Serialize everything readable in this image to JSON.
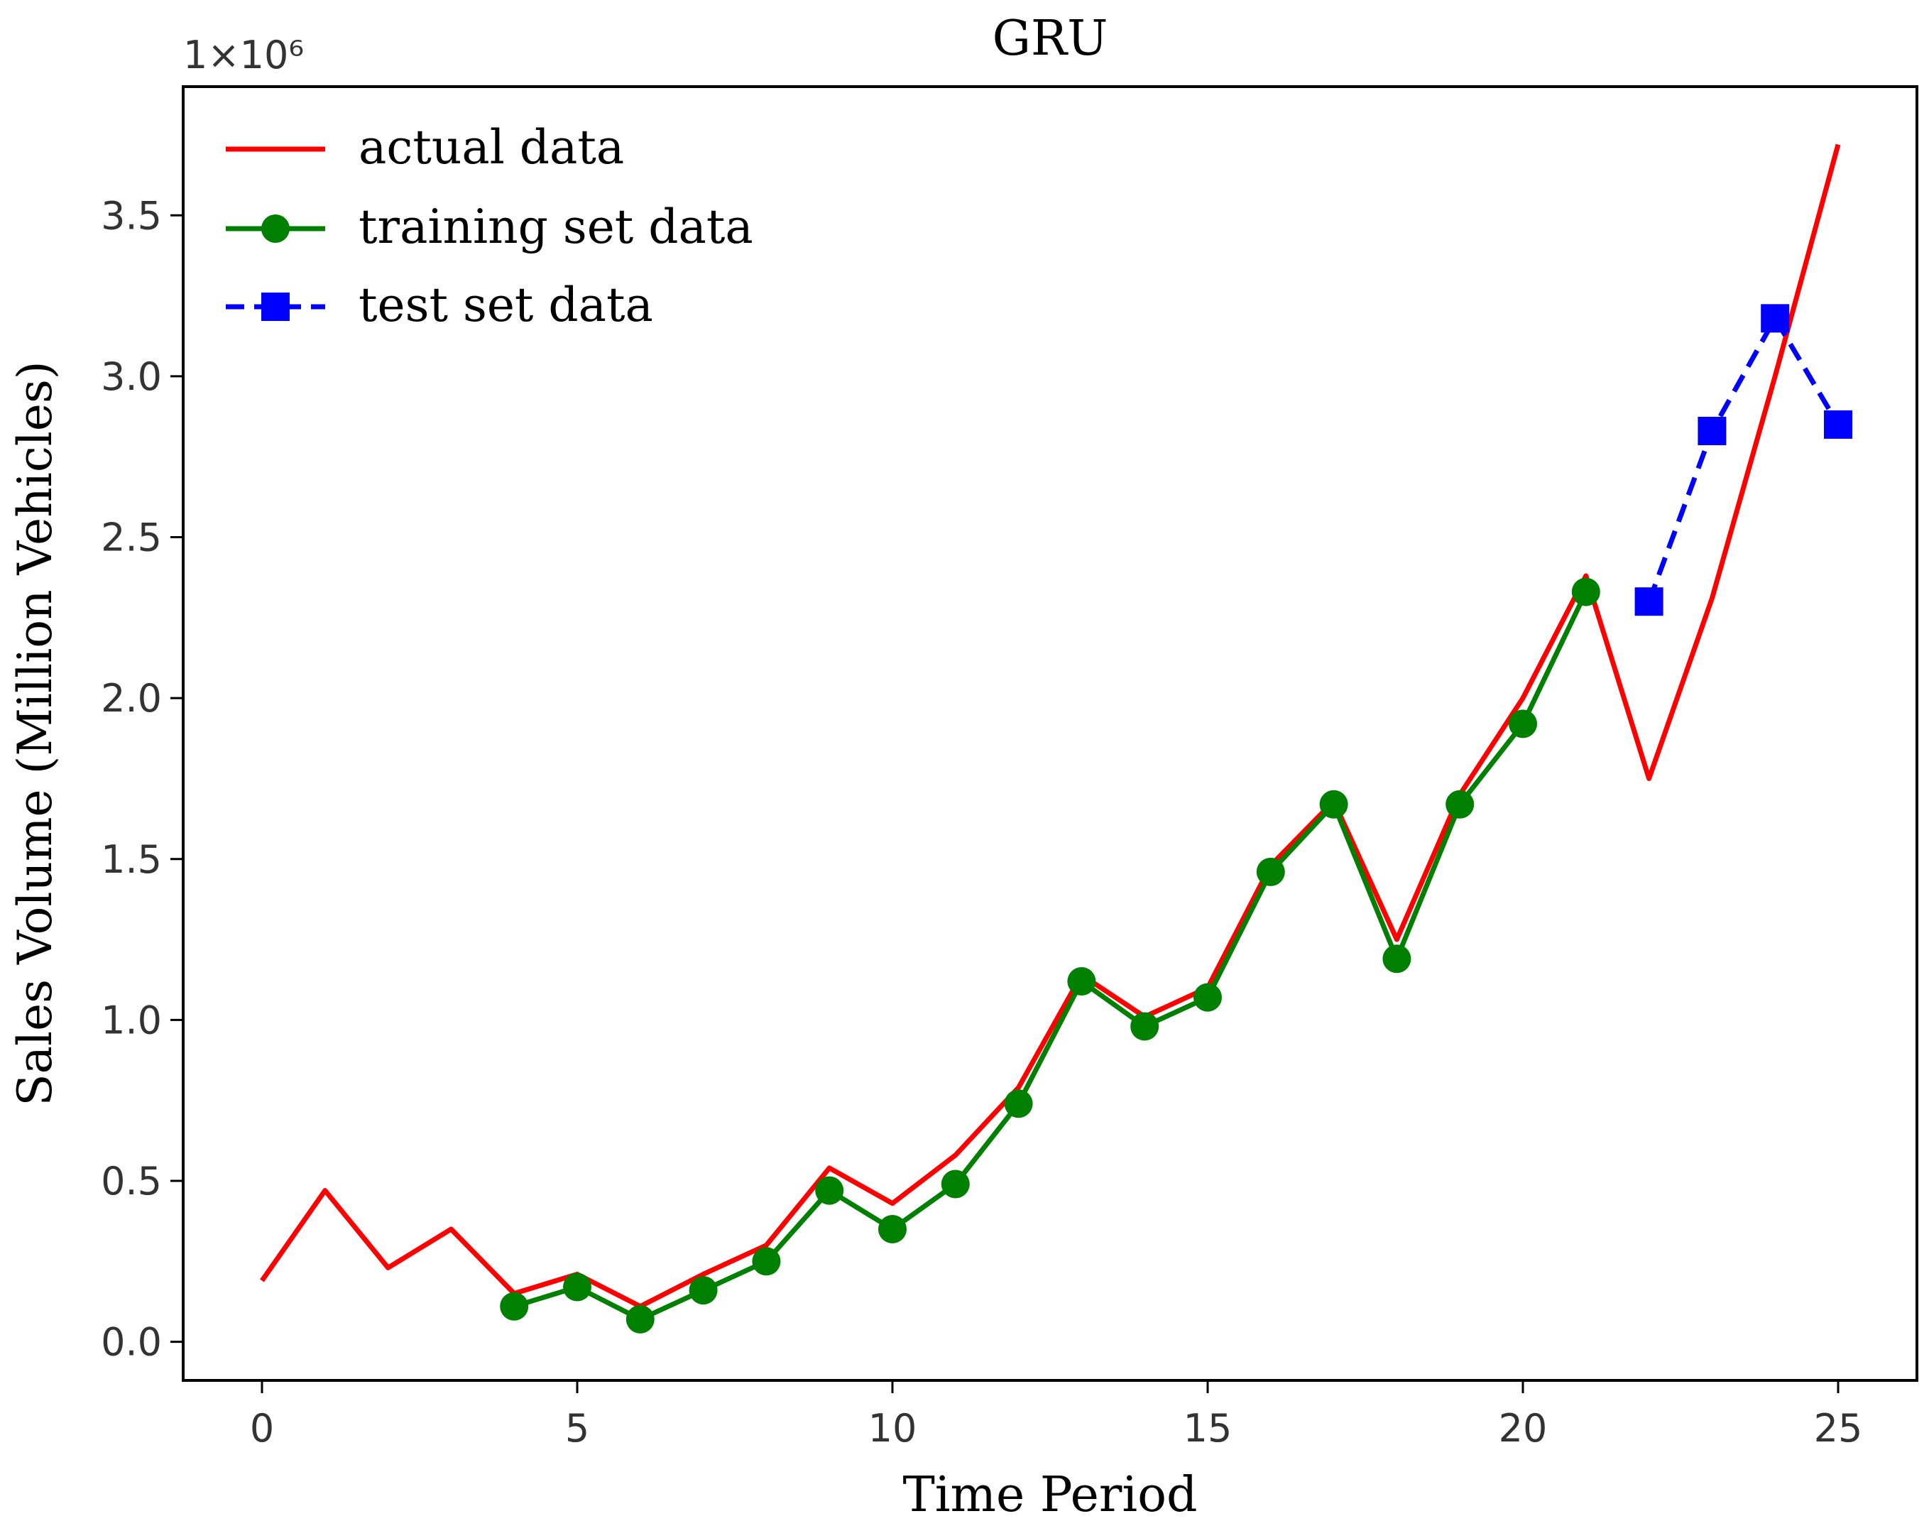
{
  "chart_data": {
    "type": "line",
    "title": "GRU",
    "xlabel": "Time Period",
    "ylabel": "Sales Volume (Million Vehicles)",
    "y_offset_label": "1×10⁶",
    "xlim": [
      -1.25,
      26.25
    ],
    "ylim": [
      -0.12,
      3.9
    ],
    "xticks": [
      0,
      5,
      10,
      15,
      20,
      25
    ],
    "yticks": [
      0.0,
      0.5,
      1.0,
      1.5,
      2.0,
      2.5,
      3.0,
      3.5
    ],
    "xtick_labels": [
      "0",
      "5",
      "10",
      "15",
      "20",
      "25"
    ],
    "ytick_labels": [
      "0.0",
      "0.5",
      "1.0",
      "1.5",
      "2.0",
      "2.5",
      "3.0",
      "3.5"
    ],
    "legend_position": "top-left",
    "grid": false,
    "series": [
      {
        "name": "actual data",
        "color": "#ff0000",
        "style": "solid",
        "marker": "none",
        "x": [
          0,
          1,
          2,
          3,
          4,
          5,
          6,
          7,
          8,
          9,
          10,
          11,
          12,
          13,
          14,
          15,
          16,
          17,
          18,
          19,
          20,
          21,
          22,
          23,
          24,
          25
        ],
        "y": [
          0.19,
          0.47,
          0.23,
          0.35,
          0.15,
          0.21,
          0.11,
          0.21,
          0.3,
          0.54,
          0.43,
          0.58,
          0.79,
          1.14,
          1.01,
          1.1,
          1.48,
          1.68,
          1.25,
          1.7,
          2.0,
          2.38,
          1.75,
          2.31,
          3.0,
          3.72
        ]
      },
      {
        "name": "training set data",
        "color": "#008000",
        "style": "solid",
        "marker": "circle",
        "x": [
          4,
          5,
          6,
          7,
          8,
          9,
          10,
          11,
          12,
          13,
          14,
          15,
          16,
          17,
          18,
          19,
          20,
          21
        ],
        "y": [
          0.11,
          0.17,
          0.07,
          0.16,
          0.25,
          0.47,
          0.35,
          0.49,
          0.74,
          1.12,
          0.98,
          1.07,
          1.46,
          1.67,
          1.19,
          1.67,
          1.92,
          2.33
        ]
      },
      {
        "name": "test set data",
        "color": "#0000ff",
        "style": "dashed",
        "marker": "square",
        "x": [
          22,
          23,
          24,
          25
        ],
        "y": [
          2.3,
          2.83,
          3.18,
          2.85
        ]
      }
    ]
  }
}
